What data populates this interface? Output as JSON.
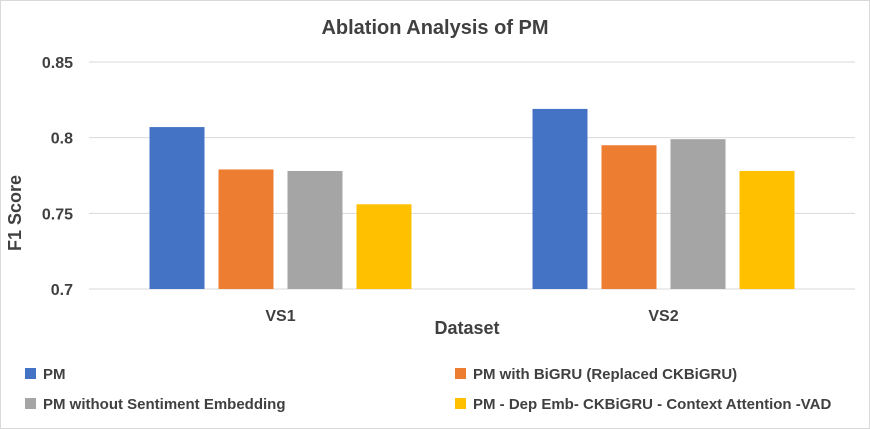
{
  "chart_data": {
    "type": "bar",
    "title": "Ablation Analysis of PM",
    "xlabel": "Dataset",
    "ylabel": "F1 Score",
    "ylim": [
      0.7,
      0.85
    ],
    "yticks": [
      "0.7",
      "0.75",
      "0.8",
      "0.85"
    ],
    "ytick_values": [
      0.7,
      0.75,
      0.8,
      0.85
    ],
    "grid": true,
    "legend_position": "bottom",
    "categories": [
      "VS1",
      "VS2"
    ],
    "series": [
      {
        "name": "PM",
        "color": "#4472c4",
        "values": [
          0.807,
          0.819
        ]
      },
      {
        "name": "PM with BiGRU (Replaced CKBiGRU)",
        "color": "#ed7d31",
        "values": [
          0.779,
          0.795
        ]
      },
      {
        "name": "PM without Sentiment Embedding",
        "color": "#a5a5a5",
        "values": [
          0.778,
          0.799
        ]
      },
      {
        "name": "PM - Dep Emb- CKBiGRU - Context Attention -VAD",
        "color": "#ffc000",
        "values": [
          0.756,
          0.778
        ]
      }
    ]
  }
}
